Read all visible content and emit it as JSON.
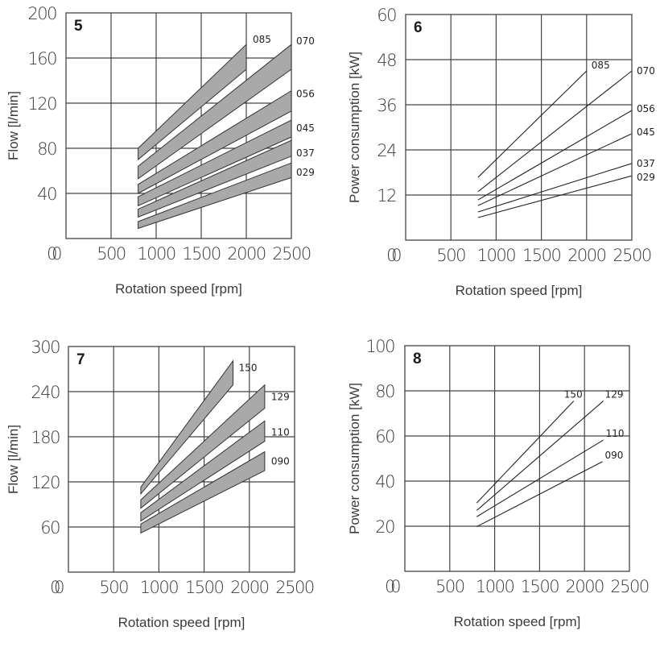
{
  "chart_data": [
    {
      "id": "5",
      "panel_number": "5",
      "type": "area",
      "title": "",
      "xlabel": "Rotation speed [rpm]",
      "ylabel": "Flow [l/min]",
      "xlim": [
        0,
        2500
      ],
      "ylim": [
        0,
        200
      ],
      "x_ticks": [
        0,
        500,
        1000,
        1500,
        2000,
        2500
      ],
      "y_ticks": [
        0,
        40,
        80,
        120,
        160,
        200
      ],
      "x_tick_labels": [
        "0",
        "500",
        "1000",
        "1500",
        "2000",
        "2500"
      ],
      "y_tick_labels": [
        "0",
        "40",
        "80",
        "120",
        "160",
        "200"
      ],
      "grid": true,
      "series": [
        {
          "name": "085",
          "x": [
            800,
            2000
          ],
          "lower": [
            70,
            150
          ],
          "upper": [
            80,
            172
          ]
        },
        {
          "name": "070",
          "x": [
            800,
            2500
          ],
          "lower": [
            53,
            150
          ],
          "upper": [
            64,
            172
          ]
        },
        {
          "name": "056",
          "x": [
            800,
            2500
          ],
          "lower": [
            40,
            113
          ],
          "upper": [
            48,
            131
          ]
        },
        {
          "name": "045",
          "x": [
            800,
            2500
          ],
          "lower": [
            29,
            90
          ],
          "upper": [
            37,
            105
          ]
        },
        {
          "name": "037",
          "x": [
            800,
            2500
          ],
          "lower": [
            19,
            73
          ],
          "upper": [
            26,
            87
          ]
        },
        {
          "name": "029",
          "x": [
            800,
            2500
          ],
          "lower": [
            9,
            54
          ],
          "upper": [
            15,
            67
          ]
        }
      ]
    },
    {
      "id": "6",
      "panel_number": "6",
      "type": "line",
      "title": "",
      "xlabel": "Rotation speed [rpm]",
      "ylabel": "Power consumption [kW]",
      "xlim": [
        0,
        2500
      ],
      "ylim": [
        0,
        60
      ],
      "x_ticks": [
        0,
        500,
        1000,
        1500,
        2000,
        2500
      ],
      "y_ticks": [
        0,
        12,
        24,
        36,
        48,
        60
      ],
      "x_tick_labels": [
        "0",
        "500",
        "1000",
        "1500",
        "2000",
        "2500"
      ],
      "y_tick_labels": [
        "0",
        "12",
        "24",
        "36",
        "48",
        "60"
      ],
      "grid": true,
      "series": [
        {
          "name": "085",
          "x": [
            800,
            2000
          ],
          "y": [
            16.7,
            45
          ]
        },
        {
          "name": "070",
          "x": [
            800,
            2500
          ],
          "y": [
            12.9,
            45
          ]
        },
        {
          "name": "056",
          "x": [
            800,
            2500
          ],
          "y": [
            10.7,
            34.5
          ]
        },
        {
          "name": "045",
          "x": [
            800,
            2500
          ],
          "y": [
            9.2,
            28.3
          ]
        },
        {
          "name": "037",
          "x": [
            800,
            2500
          ],
          "y": [
            7.5,
            20.4
          ]
        },
        {
          "name": "029",
          "x": [
            800,
            2500
          ],
          "y": [
            6.0,
            17.1
          ]
        }
      ]
    },
    {
      "id": "7",
      "panel_number": "7",
      "type": "area",
      "title": "",
      "xlabel": "Rotation speed [rpm]",
      "ylabel": "Flow [l/min]",
      "xlim": [
        0,
        2500
      ],
      "ylim": [
        0,
        300
      ],
      "x_ticks": [
        0,
        500,
        1000,
        1500,
        2000,
        2500
      ],
      "y_ticks": [
        0,
        60,
        120,
        180,
        240,
        300
      ],
      "x_tick_labels": [
        "0",
        "500",
        "1000",
        "1500",
        "2000",
        "2500"
      ],
      "y_tick_labels": [
        "0",
        "60",
        "120",
        "180",
        "240",
        "300"
      ],
      "grid": true,
      "series": [
        {
          "name": "150",
          "x": [
            800,
            1820
          ],
          "lower": [
            104,
            249
          ],
          "upper": [
            113,
            281
          ]
        },
        {
          "name": "129",
          "x": [
            800,
            2170
          ],
          "lower": [
            85,
            218
          ],
          "upper": [
            96,
            249
          ]
        },
        {
          "name": "110",
          "x": [
            800,
            2170
          ],
          "lower": [
            68,
            174
          ],
          "upper": [
            79,
            201
          ]
        },
        {
          "name": "090",
          "x": [
            800,
            2170
          ],
          "lower": [
            52,
            135
          ],
          "upper": [
            64,
            160
          ]
        }
      ]
    },
    {
      "id": "8",
      "panel_number": "8",
      "type": "line",
      "title": "",
      "xlabel": "Rotation speed [rpm]",
      "ylabel": "Power consumption [kW]",
      "xlim": [
        0,
        2500
      ],
      "ylim": [
        0,
        100
      ],
      "x_ticks": [
        0,
        500,
        1000,
        1500,
        2000,
        2500
      ],
      "y_ticks": [
        0,
        20,
        40,
        60,
        80,
        100
      ],
      "x_tick_labels": [
        "0",
        "500",
        "1000",
        "1500",
        "2000",
        "2500"
      ],
      "y_tick_labels": [
        "0",
        "20",
        "40",
        "60",
        "80",
        "100"
      ],
      "grid": true,
      "series": [
        {
          "name": "150",
          "x": [
            800,
            1880
          ],
          "y": [
            30.3,
            75.5
          ]
        },
        {
          "name": "129",
          "x": [
            800,
            2210
          ],
          "y": [
            27,
            75.5
          ]
        },
        {
          "name": "110",
          "x": [
            800,
            2210
          ],
          "y": [
            24.2,
            58.2
          ]
        },
        {
          "name": "090",
          "x": [
            800,
            2200
          ],
          "y": [
            19.8,
            48.6
          ]
        }
      ]
    }
  ]
}
